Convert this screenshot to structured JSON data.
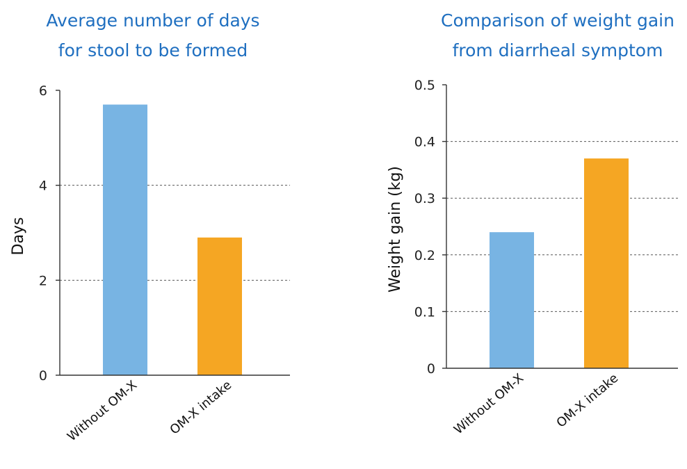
{
  "chart_data": [
    {
      "type": "bar",
      "title_lines": [
        "Average number of days",
        "for stool to be formed"
      ],
      "ylabel": "Days",
      "xlabel": "",
      "categories": [
        "Without OM-X",
        "OM-X intake"
      ],
      "values": [
        5.7,
        2.9
      ],
      "ylim": [
        0,
        6
      ],
      "yticks": [
        "0",
        "2",
        "4",
        "6"
      ],
      "grid": true,
      "colors": [
        "#78b4e3",
        "#f5a623"
      ]
    },
    {
      "type": "bar",
      "title_lines": [
        "Comparison of weight gain",
        "from diarrheal symptom"
      ],
      "ylabel": "Weight gain (kg)",
      "xlabel": "",
      "categories": [
        "Without OM-X",
        "OM-X intake"
      ],
      "values": [
        0.24,
        0.37
      ],
      "ylim": [
        0,
        0.5
      ],
      "yticks": [
        "0",
        "0.1",
        "0.2",
        "0.3",
        "0.4",
        "0.5"
      ],
      "grid": true,
      "colors": [
        "#78b4e3",
        "#f5a623"
      ]
    }
  ]
}
